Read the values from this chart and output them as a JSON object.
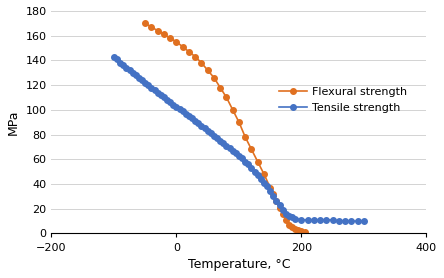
{
  "flexural_temp": [
    -50,
    -40,
    -30,
    -20,
    -10,
    0,
    10,
    20,
    30,
    40,
    50,
    60,
    70,
    80,
    90,
    100,
    110,
    120,
    130,
    140,
    150,
    155,
    160,
    165,
    170,
    175,
    180,
    185,
    190,
    195,
    200,
    205
  ],
  "flexural_strength": [
    170,
    167,
    164,
    161,
    158,
    155,
    151,
    147,
    143,
    138,
    132,
    126,
    118,
    110,
    100,
    90,
    78,
    68,
    58,
    48,
    37,
    32,
    26,
    21,
    16,
    11,
    7,
    5,
    4,
    3,
    2,
    1
  ],
  "tensile_temp": [
    -100,
    -95,
    -90,
    -85,
    -80,
    -75,
    -70,
    -65,
    -60,
    -55,
    -50,
    -45,
    -40,
    -35,
    -30,
    -25,
    -20,
    -15,
    -10,
    -5,
    0,
    5,
    10,
    15,
    20,
    25,
    30,
    35,
    40,
    45,
    50,
    55,
    60,
    65,
    70,
    75,
    80,
    85,
    90,
    95,
    100,
    105,
    110,
    115,
    120,
    125,
    130,
    135,
    140,
    145,
    150,
    155,
    160,
    165,
    170,
    175,
    180,
    185,
    190,
    200,
    210,
    220,
    230,
    240,
    250,
    260,
    270,
    280,
    290,
    300
  ],
  "tensile_strength": [
    143,
    141,
    138,
    136,
    134,
    132,
    130,
    128,
    126,
    124,
    122,
    120,
    118,
    116,
    114,
    112,
    110,
    108,
    106,
    104,
    102,
    101,
    99,
    97,
    95,
    93,
    91,
    89,
    87,
    85,
    83,
    81,
    79,
    77,
    75,
    73,
    71,
    69,
    67,
    65,
    63,
    61,
    58,
    56,
    53,
    50,
    47,
    44,
    41,
    38,
    34,
    30,
    26,
    23,
    19,
    16,
    14,
    13,
    12,
    11,
    11,
    11,
    11,
    11,
    11,
    10,
    10,
    10,
    10,
    10
  ],
  "flexural_color": "#E07020",
  "tensile_color": "#4472C4",
  "xlabel": "Temperature, °C",
  "ylabel": "MPa",
  "xlim": [
    -200,
    400
  ],
  "ylim": [
    0,
    180
  ],
  "xticks": [
    -200,
    0,
    200,
    400
  ],
  "yticks": [
    0,
    20,
    40,
    60,
    80,
    100,
    120,
    140,
    160,
    180
  ],
  "legend_flexural": "Flexural strength",
  "legend_tensile": "Tensile strength",
  "marker_size": 4,
  "line_width": 1.2
}
